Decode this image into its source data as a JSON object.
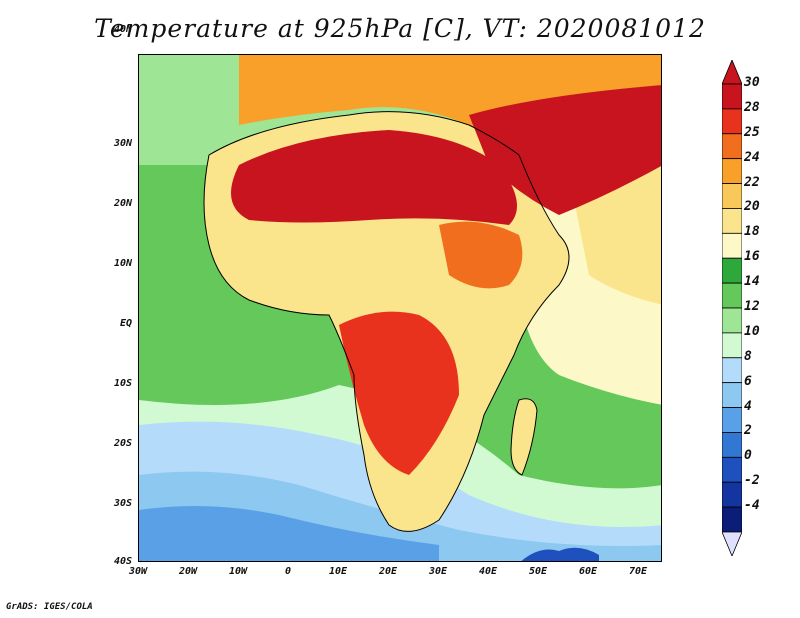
{
  "title": "Temperature at 925hPa [C], VT: 2020081012",
  "credit": "GrADS: IGES/COLA",
  "map": {
    "lat_labels": [
      "40N",
      "30N",
      "20N",
      "10N",
      "EQ",
      "10S",
      "20S",
      "30S",
      "40S"
    ],
    "lon_labels": [
      "30W",
      "20W",
      "10W",
      "0",
      "10E",
      "20E",
      "30E",
      "40E",
      "50E",
      "60E",
      "70E"
    ]
  },
  "colorbar": {
    "labels": [
      "30",
      "28",
      "25",
      "24",
      "22",
      "20",
      "18",
      "16",
      "14",
      "12",
      "10",
      "8",
      "6",
      "4",
      "2",
      "0",
      "-2",
      "-4"
    ],
    "colors": [
      "#c8141e",
      "#e8321e",
      "#f06e1e",
      "#f8a02a",
      "#f8c85a",
      "#fae58c",
      "#fcf8c8",
      "#2ea83a",
      "#64c85a",
      "#9ee696",
      "#d2fad2",
      "#b4dcfa",
      "#8cc8f0",
      "#5aa0e6",
      "#3278d2",
      "#1e50be",
      "#1434a0",
      "#0a1e78"
    ],
    "top_color": "#c8141e",
    "bottom_color": "#e0e0ff"
  }
}
